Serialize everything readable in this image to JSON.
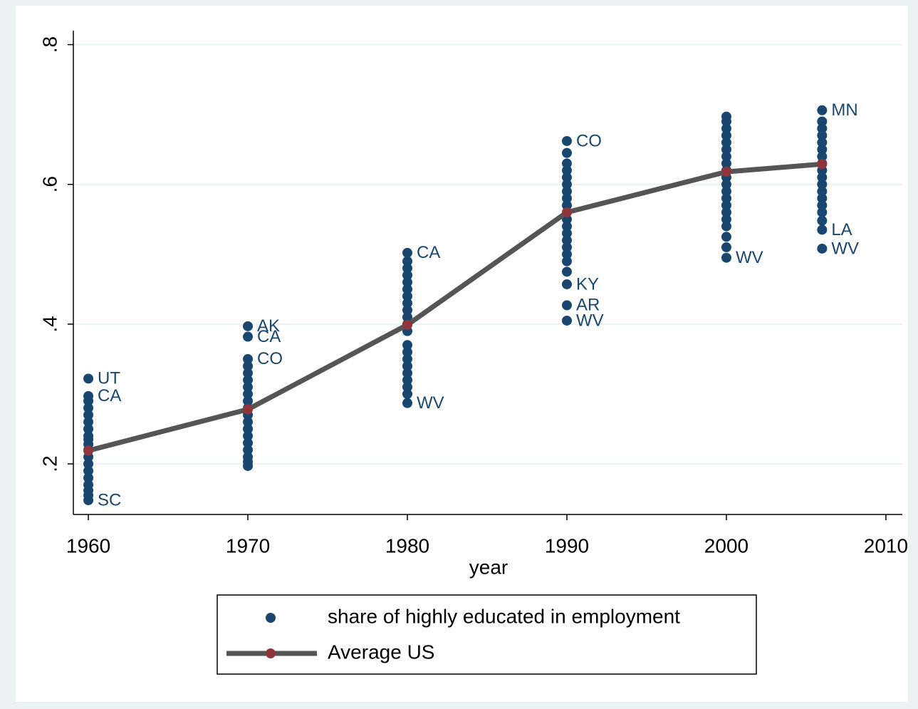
{
  "chart_data": {
    "type": "scatter",
    "x_label": "year",
    "xlim": [
      1959.06,
      2011.03
    ],
    "xticks": [
      1960,
      1970,
      1980,
      1990,
      2000,
      2010
    ],
    "ylim": [
      0.1276,
      0.82
    ],
    "yticks": [
      {
        "value": 0.2,
        "label": ".2"
      },
      {
        "value": 0.4,
        "label": ".4"
      },
      {
        "value": 0.6,
        "label": ".6"
      },
      {
        "value": 0.8,
        "label": ".8"
      }
    ],
    "grid": true,
    "series": [
      {
        "name": "share of highly educated in employment",
        "color": "#1a476f",
        "groups": [
          {
            "x": 1960,
            "values": [
              0.322,
              0.297,
              0.29,
              0.28,
              0.27,
              0.26,
              0.25,
              0.24,
              0.235,
              0.228,
              0.22,
              0.21,
              0.2,
              0.19,
              0.18,
              0.17,
              0.162,
              0.155,
              0.148
            ],
            "labels": [
              "UT",
              "CA",
              null,
              null,
              null,
              null,
              null,
              null,
              null,
              null,
              null,
              null,
              null,
              null,
              null,
              null,
              null,
              null,
              "SC"
            ]
          },
          {
            "x": 1970,
            "values": [
              0.397,
              0.382,
              0.35,
              0.34,
              0.33,
              0.32,
              0.31,
              0.3,
              0.29,
              0.28,
              0.27,
              0.26,
              0.25,
              0.24,
              0.23,
              0.22,
              0.21,
              0.203,
              0.197
            ],
            "labels": [
              "AK",
              "CA",
              "CO",
              null,
              null,
              null,
              null,
              null,
              null,
              null,
              null,
              null,
              null,
              null,
              null,
              null,
              null,
              null,
              null
            ]
          },
          {
            "x": 1980,
            "values": [
              0.502,
              0.49,
              0.48,
              0.47,
              0.46,
              0.45,
              0.44,
              0.43,
              0.42,
              0.41,
              0.4,
              0.39,
              0.37,
              0.36,
              0.35,
              0.34,
              0.33,
              0.32,
              0.31,
              0.3,
              0.287
            ],
            "labels": [
              "CA",
              null,
              null,
              null,
              null,
              null,
              null,
              null,
              null,
              null,
              null,
              null,
              null,
              null,
              null,
              null,
              null,
              null,
              null,
              null,
              "WV"
            ]
          },
          {
            "x": 1990,
            "values": [
              0.662,
              0.645,
              0.63,
              0.62,
              0.61,
              0.6,
              0.59,
              0.58,
              0.57,
              0.56,
              0.55,
              0.54,
              0.53,
              0.52,
              0.51,
              0.5,
              0.49,
              0.475,
              0.457,
              0.427,
              0.405
            ],
            "labels": [
              "CO",
              null,
              null,
              null,
              null,
              null,
              null,
              null,
              null,
              null,
              null,
              null,
              null,
              null,
              null,
              null,
              null,
              null,
              "KY",
              "AR",
              "WV"
            ]
          },
          {
            "x": 2000,
            "values": [
              0.697,
              0.69,
              0.68,
              0.67,
              0.66,
              0.65,
              0.64,
              0.63,
              0.62,
              0.61,
              0.6,
              0.59,
              0.58,
              0.57,
              0.56,
              0.55,
              0.54,
              0.525,
              0.51,
              0.495
            ],
            "labels": [
              null,
              null,
              null,
              null,
              null,
              null,
              null,
              null,
              null,
              null,
              null,
              null,
              null,
              null,
              null,
              null,
              null,
              null,
              null,
              "WV"
            ]
          },
          {
            "x": 2006,
            "values": [
              0.706,
              0.69,
              0.68,
              0.67,
              0.66,
              0.65,
              0.64,
              0.63,
              0.62,
              0.61,
              0.6,
              0.59,
              0.58,
              0.57,
              0.56,
              0.548,
              0.535,
              0.508
            ],
            "labels": [
              "MN",
              null,
              null,
              null,
              null,
              null,
              null,
              null,
              null,
              null,
              null,
              null,
              null,
              null,
              null,
              null,
              "LA",
              "WV"
            ]
          }
        ]
      },
      {
        "name": "Average US",
        "type": "line",
        "color": "#555555",
        "marker_color": "#90353b",
        "x": [
          1960,
          1970,
          1980,
          1990,
          2000,
          2006
        ],
        "values": [
          0.219,
          0.278,
          0.399,
          0.56,
          0.618,
          0.629
        ]
      }
    ]
  }
}
